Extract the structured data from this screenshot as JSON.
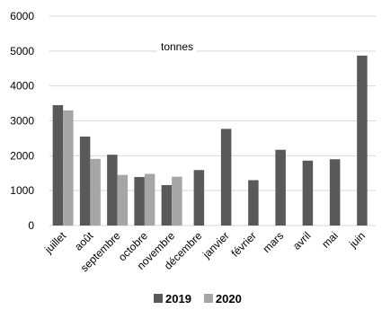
{
  "chart_data": {
    "type": "bar",
    "unit_label": "tonnes",
    "categories": [
      "juillet",
      "août",
      "septembre",
      "octobre",
      "novembre",
      "décembre",
      "janvier",
      "février",
      "mars",
      "avril",
      "mai",
      "juin"
    ],
    "series": [
      {
        "name": "2019",
        "color": "#595959",
        "values": [
          3450,
          2550,
          2030,
          1390,
          1160,
          1590,
          2770,
          1300,
          2170,
          1860,
          1900,
          4870
        ]
      },
      {
        "name": "2020",
        "color": "#a6a6a6",
        "values": [
          3300,
          1910,
          1450,
          1480,
          1400,
          null,
          null,
          null,
          null,
          null,
          null,
          null
        ]
      }
    ],
    "ylim": [
      0,
      6000
    ],
    "yticks": [
      0,
      1000,
      2000,
      3000,
      4000,
      5000,
      6000
    ],
    "grid": true,
    "legend_position": "bottom"
  }
}
